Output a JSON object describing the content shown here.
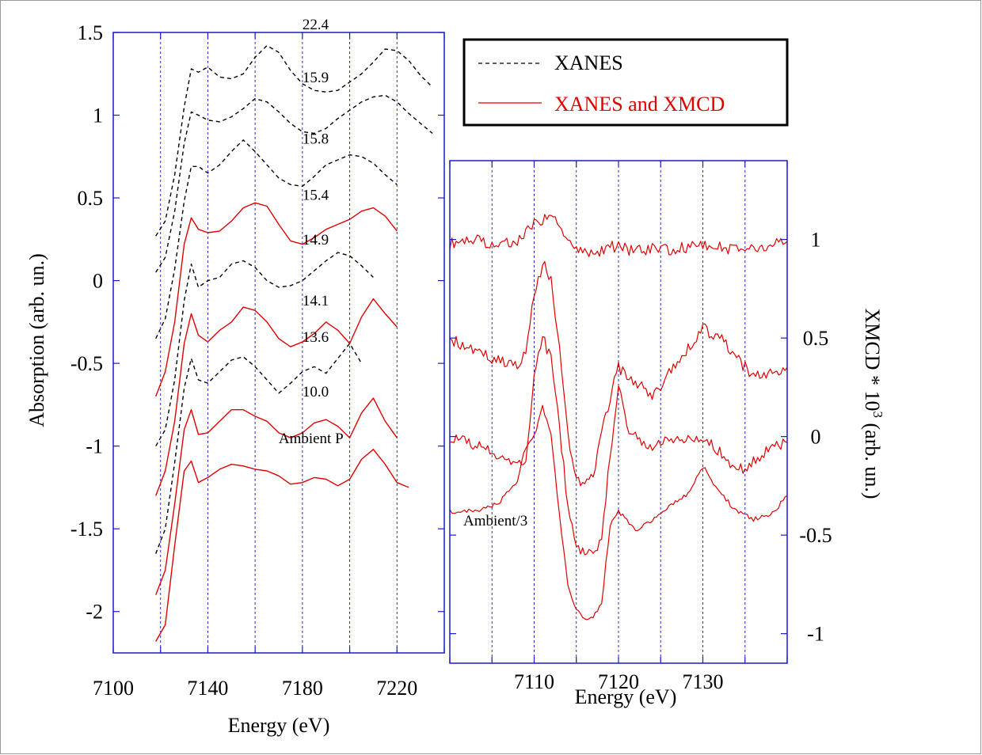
{
  "chart_data": [
    {
      "type": "line",
      "xlabel": "Energy (eV)",
      "ylabel": "Absorption (arb. un.)",
      "xlim": [
        7100,
        7240
      ],
      "ylim": [
        -2.25,
        1.5
      ],
      "x_ticks": [
        "7100",
        "7140",
        "7180",
        "7220"
      ],
      "y_ticks": [
        "1.5",
        "1",
        "0.5",
        "0",
        "-0.5",
        "-1",
        "-1.5",
        "-2"
      ],
      "grid": "vertical dotted blue lines every 20 eV",
      "legend": {
        "position": "top-right",
        "entries": [
          {
            "name": "XANES",
            "style": "dashed",
            "color": "#000000"
          },
          {
            "name": "XANES and XMCD",
            "style": "solid",
            "color": "#e00000"
          }
        ]
      },
      "x": [
        7100,
        7105,
        7108,
        7112,
        7115,
        7118,
        7122,
        7126,
        7130,
        7133,
        7136,
        7140,
        7145,
        7150,
        7155,
        7160,
        7165,
        7170,
        7175,
        7180,
        7185,
        7190,
        7195,
        7200,
        7205,
        7210,
        7215,
        7220,
        7225,
        7230,
        7235,
        7240
      ],
      "series": [
        {
          "label": "22.4",
          "style": "dashed",
          "color": "#000000",
          "values": [
            null,
            null,
            null,
            null,
            null,
            0.27,
            0.36,
            0.64,
            1.05,
            1.28,
            1.26,
            1.29,
            1.23,
            1.22,
            1.25,
            1.35,
            1.42,
            1.38,
            1.27,
            1.19,
            1.15,
            1.14,
            1.15,
            1.2,
            1.25,
            1.32,
            1.4,
            1.39,
            1.33,
            1.24,
            1.17,
            null
          ]
        },
        {
          "label": "15.9",
          "style": "dashed",
          "color": "#000000",
          "values": [
            null,
            null,
            null,
            null,
            null,
            0.05,
            0.14,
            0.42,
            0.83,
            1.02,
            1.0,
            0.97,
            0.96,
            0.99,
            1.04,
            1.1,
            1.08,
            1.02,
            0.95,
            0.9,
            0.89,
            0.92,
            0.98,
            1.03,
            1.08,
            1.11,
            1.12,
            1.08,
            1.01,
            0.95,
            0.89,
            null
          ]
        },
        {
          "label": "15.8",
          "style": "dashed",
          "color": "#000000",
          "values": [
            null,
            null,
            null,
            null,
            null,
            -0.35,
            -0.23,
            0.07,
            0.48,
            0.69,
            0.69,
            0.65,
            0.7,
            0.78,
            0.85,
            0.78,
            0.7,
            0.62,
            0.58,
            0.57,
            0.63,
            0.7,
            0.73,
            0.76,
            0.75,
            0.71,
            0.64,
            0.58,
            null,
            null,
            null,
            null
          ]
        },
        {
          "label": "15.4",
          "style": "solid",
          "color": "#e00000",
          "values": [
            null,
            null,
            null,
            null,
            null,
            -0.7,
            -0.55,
            -0.25,
            0.22,
            0.38,
            0.31,
            0.29,
            0.3,
            0.36,
            0.44,
            0.47,
            0.45,
            0.34,
            0.24,
            0.22,
            0.26,
            0.31,
            0.34,
            0.37,
            0.42,
            0.44,
            0.39,
            0.3,
            null,
            null,
            null,
            null
          ]
        },
        {
          "label": "14.9",
          "style": "dashed",
          "color": "#000000",
          "values": [
            null,
            null,
            null,
            null,
            null,
            -1.0,
            -0.9,
            -0.6,
            -0.12,
            0.1,
            -0.04,
            0.0,
            0.02,
            0.1,
            0.12,
            0.08,
            0.0,
            -0.04,
            -0.03,
            0.0,
            0.06,
            0.12,
            0.17,
            0.15,
            0.09,
            0.02,
            null,
            null,
            null,
            null,
            null,
            null
          ]
        },
        {
          "label": "14.1",
          "style": "solid",
          "color": "#e00000",
          "values": [
            null,
            null,
            null,
            null,
            null,
            -1.3,
            -1.15,
            -0.85,
            -0.38,
            -0.2,
            -0.33,
            -0.37,
            -0.3,
            -0.25,
            -0.16,
            -0.18,
            -0.25,
            -0.35,
            -0.4,
            -0.37,
            -0.32,
            -0.25,
            -0.3,
            -0.38,
            -0.22,
            -0.11,
            -0.2,
            -0.28,
            null,
            null,
            null,
            null
          ]
        },
        {
          "label": "13.6",
          "style": "dashed",
          "color": "#000000",
          "values": [
            null,
            null,
            null,
            null,
            null,
            -1.65,
            -1.5,
            -1.1,
            -0.65,
            -0.47,
            -0.6,
            -0.62,
            -0.55,
            -0.48,
            -0.46,
            -0.52,
            -0.6,
            -0.68,
            -0.62,
            -0.55,
            -0.52,
            -0.56,
            -0.47,
            -0.38,
            -0.5,
            null,
            null,
            null,
            null,
            null,
            null,
            null
          ]
        },
        {
          "label": "10.0",
          "style": "solid",
          "color": "#e00000",
          "values": [
            null,
            null,
            null,
            null,
            null,
            -1.9,
            -1.75,
            -1.35,
            -0.9,
            -0.78,
            -0.93,
            -0.92,
            -0.85,
            -0.78,
            -0.78,
            -0.82,
            -0.85,
            -0.92,
            -0.95,
            -0.92,
            -0.86,
            -0.84,
            -0.88,
            -0.95,
            -0.8,
            -0.71,
            -0.85,
            -0.95,
            null,
            null,
            null,
            null
          ]
        },
        {
          "label": "Ambient P",
          "style": "solid",
          "color": "#e00000",
          "values": [
            null,
            null,
            null,
            null,
            null,
            -2.18,
            -2.08,
            -1.6,
            -1.15,
            -1.09,
            -1.22,
            -1.19,
            -1.14,
            -1.11,
            -1.12,
            -1.14,
            -1.15,
            -1.18,
            -1.23,
            -1.22,
            -1.19,
            -1.2,
            -1.24,
            -1.2,
            -1.08,
            -1.02,
            -1.11,
            -1.22,
            -1.25,
            null,
            null,
            null
          ]
        }
      ]
    },
    {
      "type": "line",
      "xlabel": "Energy (eV)",
      "ylabel_main": "XMCD * 10",
      "ylabel_sup": "3",
      "ylabel_tail": " (arb. un.)",
      "xlim": [
        7100,
        7140
      ],
      "ylim": [
        -1.15,
        1.4
      ],
      "x_ticks": [
        "7110",
        "7120",
        "7130"
      ],
      "y_ticks": [
        "1",
        "0.5",
        "0",
        "-0.5",
        "-1"
      ],
      "grid": "vertical dotted blue lines every 5 eV",
      "annotation": "Ambient/3",
      "x": [
        7100,
        7102,
        7104,
        7106,
        7108,
        7109,
        7110,
        7111,
        7112,
        7113,
        7114,
        7115,
        7116,
        7117,
        7118,
        7119,
        7120,
        7121,
        7122,
        7124,
        7126,
        7128,
        7130,
        7132,
        7134,
        7136,
        7138,
        7140
      ],
      "series": [
        {
          "label": "15.4",
          "color": "#e00000",
          "values": [
            0.98,
            1.0,
            0.99,
            0.97,
            1.0,
            1.03,
            1.08,
            1.1,
            1.12,
            1.08,
            1.0,
            0.95,
            0.93,
            0.92,
            0.95,
            0.97,
            0.96,
            0.95,
            0.94,
            0.95,
            0.95,
            0.96,
            0.97,
            0.96,
            0.95,
            0.96,
            0.97,
            0.99
          ]
        },
        {
          "label": "14.1",
          "color": "#e00000",
          "values": [
            0.5,
            0.45,
            0.42,
            0.38,
            0.36,
            0.45,
            0.7,
            0.88,
            0.8,
            0.45,
            0.0,
            -0.2,
            -0.25,
            -0.2,
            0.02,
            0.2,
            0.35,
            0.32,
            0.28,
            0.2,
            0.32,
            0.44,
            0.55,
            0.5,
            0.4,
            0.3,
            0.33,
            0.35
          ]
        },
        {
          "label": "13.6",
          "color": "#e00000",
          "values": [
            0.0,
            -0.02,
            -0.06,
            -0.1,
            -0.14,
            -0.12,
            0.3,
            0.5,
            0.4,
            0.05,
            -0.35,
            -0.55,
            -0.6,
            -0.6,
            -0.5,
            -0.1,
            0.25,
            0.05,
            0.0,
            -0.05,
            0.0,
            -0.02,
            0.0,
            -0.08,
            -0.18,
            -0.13,
            -0.06,
            -0.03
          ]
        },
        {
          "label": "Ambient/3",
          "color": "#e00000",
          "values": [
            -0.38,
            -0.38,
            -0.37,
            -0.33,
            -0.22,
            -0.05,
            0.0,
            0.15,
            0.02,
            -0.4,
            -0.75,
            -0.88,
            -0.92,
            -0.92,
            -0.85,
            -0.45,
            -0.38,
            -0.43,
            -0.48,
            -0.42,
            -0.35,
            -0.3,
            -0.15,
            -0.28,
            -0.38,
            -0.42,
            -0.4,
            -0.3
          ]
        }
      ]
    }
  ]
}
